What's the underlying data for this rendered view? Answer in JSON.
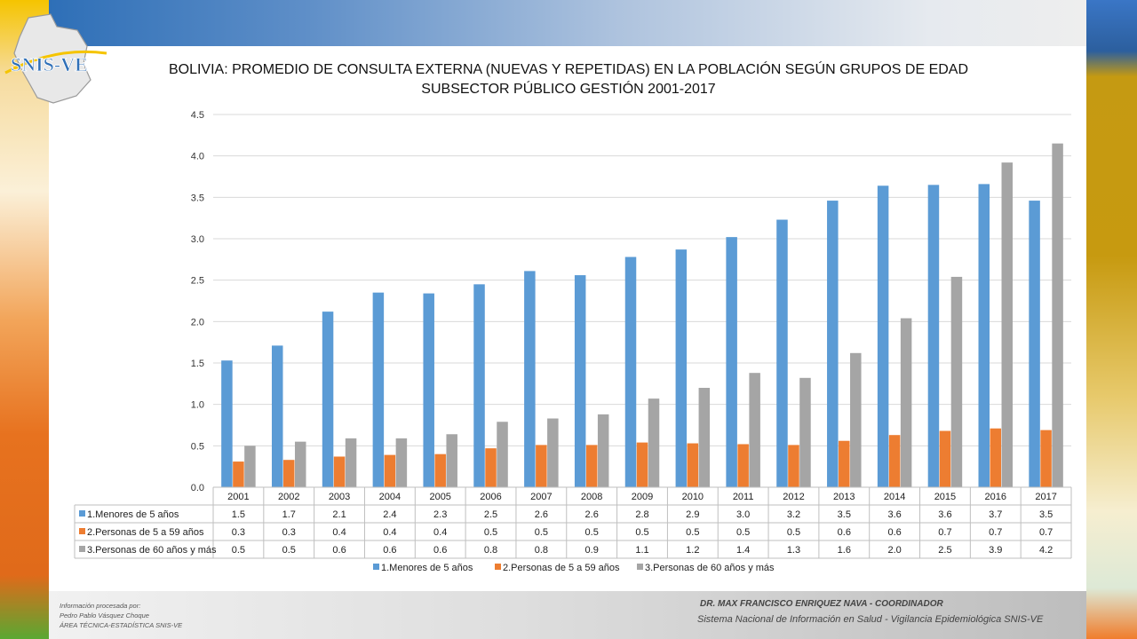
{
  "logo_text": "SNIS-VE",
  "title_line1": "BOLIVIA: PROMEDIO DE CONSULTA EXTERNA (NUEVAS Y REPETIDAS) EN LA POBLACIÓN SEGÚN GRUPOS DE EDAD",
  "title_line2": "SUBSECTOR PÚBLICO GESTIÓN 2001-2017",
  "footer": {
    "left_line1": "Información procesada por:",
    "left_line2": "Pedro Pablo Vásquez Choque",
    "left_line3": "ÁREA TÉCNICA-ESTADÍSTICA  SNIS-VE",
    "right_line1": "DR. MAX FRANCISCO ENRIQUEZ NAVA - COORDINADOR",
    "right_line2": "Sistema Nacional de Información en Salud - Vigilancia Epidemiológica SNIS-VE"
  },
  "chart_data": {
    "type": "bar",
    "categories": [
      "2001",
      "2002",
      "2003",
      "2004",
      "2005",
      "2006",
      "2007",
      "2008",
      "2009",
      "2010",
      "2011",
      "2012",
      "2013",
      "2014",
      "2015",
      "2016",
      "2017"
    ],
    "series": [
      {
        "name": "1.Menores de 5 años",
        "color": "#5b9bd5",
        "values": [
          1.53,
          1.71,
          2.12,
          2.35,
          2.34,
          2.45,
          2.61,
          2.56,
          2.78,
          2.87,
          3.02,
          3.23,
          3.46,
          3.64,
          3.65,
          3.66,
          3.46
        ],
        "labels": [
          "1.5",
          "1.7",
          "2.1",
          "2.4",
          "2.3",
          "2.5",
          "2.6",
          "2.6",
          "2.8",
          "2.9",
          "3.0",
          "3.2",
          "3.5",
          "3.6",
          "3.6",
          "3.7",
          "3.5"
        ]
      },
      {
        "name": "2.Personas de 5 a 59 años",
        "color": "#ed7d31",
        "values": [
          0.31,
          0.33,
          0.37,
          0.39,
          0.4,
          0.47,
          0.51,
          0.51,
          0.54,
          0.53,
          0.52,
          0.51,
          0.56,
          0.63,
          0.68,
          0.71,
          0.69
        ],
        "labels": [
          "0.3",
          "0.3",
          "0.4",
          "0.4",
          "0.4",
          "0.5",
          "0.5",
          "0.5",
          "0.5",
          "0.5",
          "0.5",
          "0.5",
          "0.6",
          "0.6",
          "0.7",
          "0.7",
          "0.7"
        ]
      },
      {
        "name": "3.Personas de 60 años y más",
        "color": "#a5a5a5",
        "values": [
          0.5,
          0.55,
          0.59,
          0.59,
          0.64,
          0.79,
          0.83,
          0.88,
          1.07,
          1.2,
          1.38,
          1.32,
          1.62,
          2.04,
          2.54,
          3.92,
          4.15
        ],
        "labels": [
          "0.5",
          "0.5",
          "0.6",
          "0.6",
          "0.6",
          "0.8",
          "0.8",
          "0.9",
          "1.1",
          "1.2",
          "1.4",
          "1.3",
          "1.6",
          "2.0",
          "2.5",
          "3.9",
          "4.2"
        ]
      }
    ],
    "yticks": [
      "0.0",
      "0.5",
      "1.0",
      "1.5",
      "2.0",
      "2.5",
      "3.0",
      "3.5",
      "4.0",
      "4.5"
    ],
    "ylim": [
      0,
      4.5
    ],
    "grid": true,
    "data_table": true,
    "legend_position": "bottom"
  }
}
